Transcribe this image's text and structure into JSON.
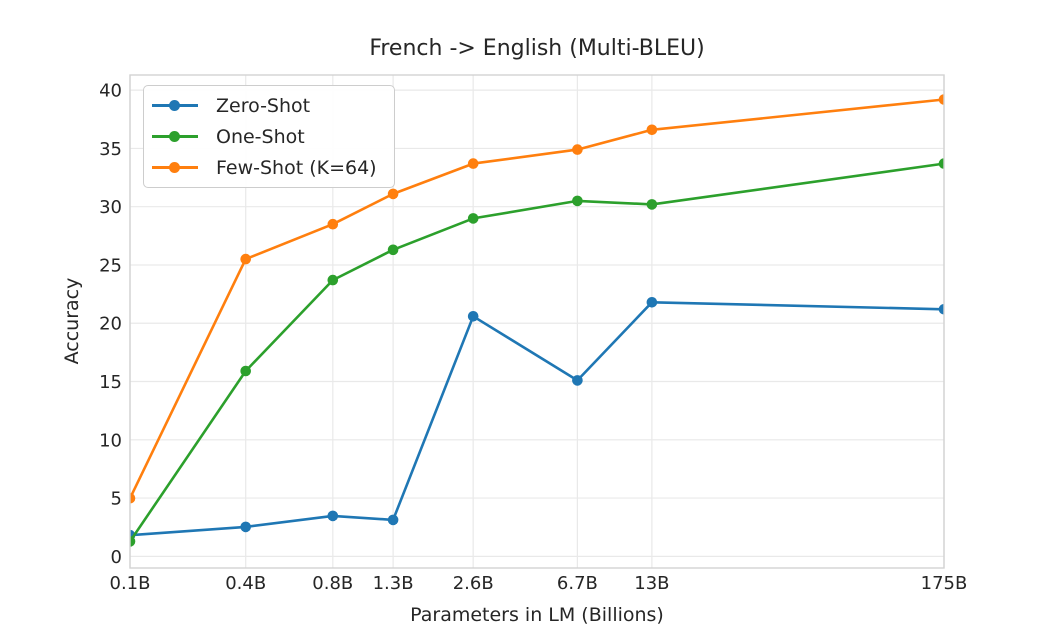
{
  "chart_data": {
    "type": "line",
    "title": "French -> English (Multi-BLEU)",
    "xlabel": "Parameters in LM (Billions)",
    "ylabel": "Accuracy",
    "xscale": "log",
    "x": [
      0.125,
      0.35,
      0.76,
      1.3,
      2.65,
      6.7,
      13,
      175
    ],
    "xtick_labels": [
      "0.1B",
      "0.4B",
      "0.8B",
      "1.3B",
      "2.6B",
      "6.7B",
      "13B",
      "175B"
    ],
    "yticks": [
      0,
      5,
      10,
      15,
      20,
      25,
      30,
      35,
      40
    ],
    "xlim": [
      0.125,
      175
    ],
    "ylim": [
      -1.0,
      41.3
    ],
    "grid": true,
    "legend_position": "upper left",
    "series": [
      {
        "name": "Zero-Shot",
        "color": "#1f77b4",
        "values": [
          1.81,
          2.53,
          3.47,
          3.13,
          20.6,
          15.1,
          21.8,
          21.2
        ]
      },
      {
        "name": "One-Shot",
        "color": "#2ca02c",
        "values": [
          1.28,
          15.9,
          23.7,
          26.3,
          29.0,
          30.5,
          30.2,
          33.7
        ]
      },
      {
        "name": "Few-Shot (K=64)",
        "color": "#ff7f0e",
        "values": [
          4.98,
          25.5,
          28.5,
          31.1,
          33.7,
          34.9,
          36.6,
          39.2
        ]
      }
    ]
  },
  "colors": {
    "grid": "#e9e9e9",
    "spine": "#d2d2d2",
    "text": "#262626",
    "background": "#ffffff"
  }
}
